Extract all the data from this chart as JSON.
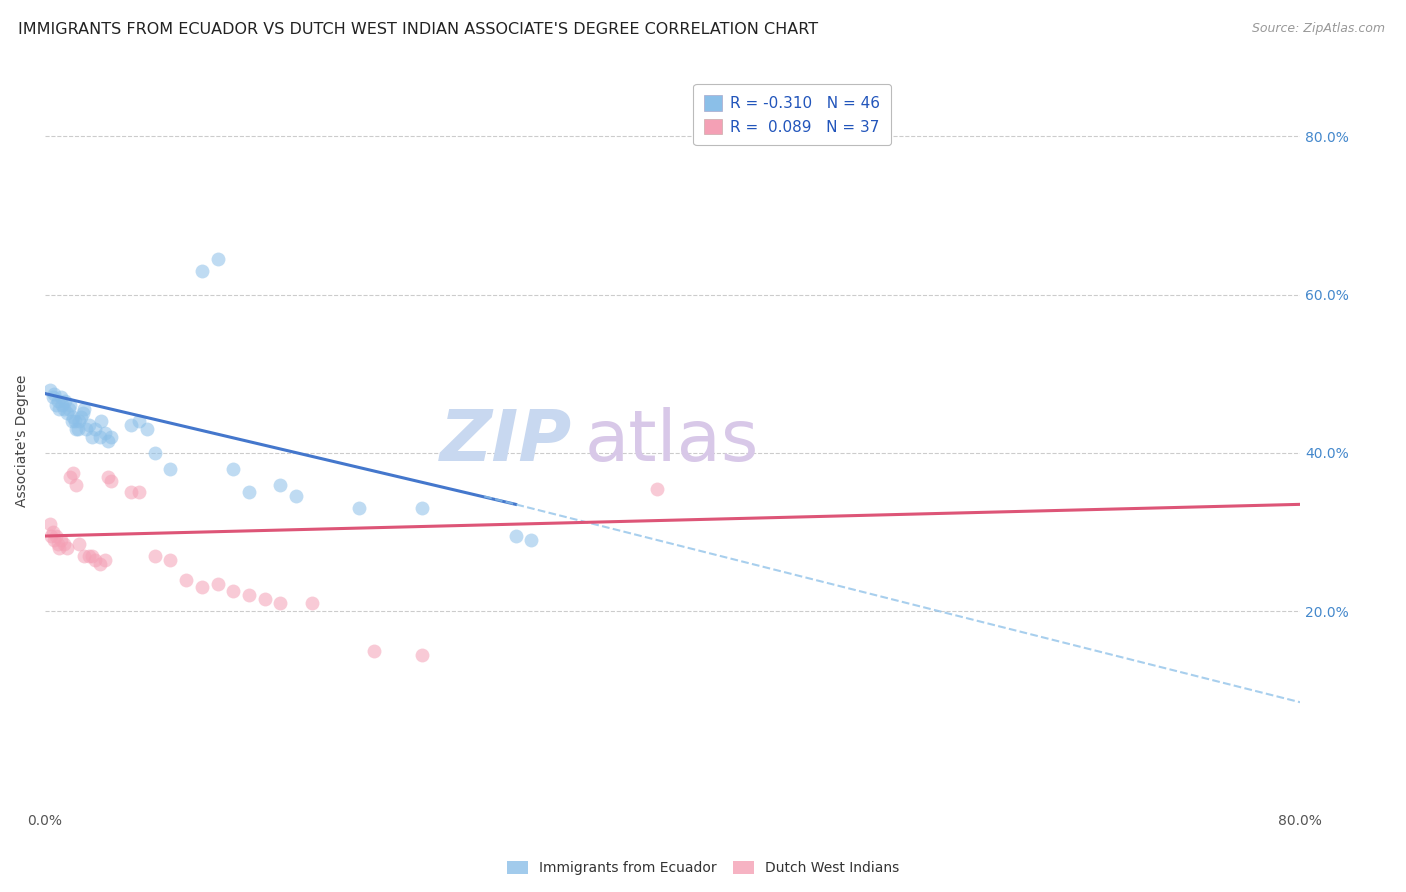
{
  "title": "IMMIGRANTS FROM ECUADOR VS DUTCH WEST INDIAN ASSOCIATE'S DEGREE CORRELATION CHART",
  "source": "Source: ZipAtlas.com",
  "ylabel": "Associate's Degree",
  "right_yticks": [
    "80.0%",
    "60.0%",
    "40.0%",
    "20.0%"
  ],
  "right_ytick_vals": [
    0.8,
    0.6,
    0.4,
    0.2
  ],
  "xlim": [
    0.0,
    0.8
  ],
  "ylim": [
    -0.05,
    0.88
  ],
  "legend_labels": [
    "R = -0.310   N = 46",
    "R =  0.089   N = 37"
  ],
  "blue_scatter": [
    [
      0.003,
      0.48
    ],
    [
      0.005,
      0.47
    ],
    [
      0.006,
      0.475
    ],
    [
      0.007,
      0.46
    ],
    [
      0.008,
      0.465
    ],
    [
      0.009,
      0.455
    ],
    [
      0.01,
      0.47
    ],
    [
      0.011,
      0.46
    ],
    [
      0.012,
      0.455
    ],
    [
      0.013,
      0.465
    ],
    [
      0.014,
      0.45
    ],
    [
      0.015,
      0.455
    ],
    [
      0.016,
      0.46
    ],
    [
      0.017,
      0.44
    ],
    [
      0.018,
      0.445
    ],
    [
      0.019,
      0.44
    ],
    [
      0.02,
      0.43
    ],
    [
      0.021,
      0.43
    ],
    [
      0.022,
      0.44
    ],
    [
      0.023,
      0.445
    ],
    [
      0.024,
      0.45
    ],
    [
      0.025,
      0.455
    ],
    [
      0.026,
      0.43
    ],
    [
      0.028,
      0.435
    ],
    [
      0.03,
      0.42
    ],
    [
      0.032,
      0.43
    ],
    [
      0.035,
      0.42
    ],
    [
      0.036,
      0.44
    ],
    [
      0.038,
      0.425
    ],
    [
      0.04,
      0.415
    ],
    [
      0.042,
      0.42
    ],
    [
      0.055,
      0.435
    ],
    [
      0.06,
      0.44
    ],
    [
      0.065,
      0.43
    ],
    [
      0.07,
      0.4
    ],
    [
      0.08,
      0.38
    ],
    [
      0.1,
      0.63
    ],
    [
      0.11,
      0.645
    ],
    [
      0.12,
      0.38
    ],
    [
      0.13,
      0.35
    ],
    [
      0.15,
      0.36
    ],
    [
      0.16,
      0.345
    ],
    [
      0.2,
      0.33
    ],
    [
      0.24,
      0.33
    ],
    [
      0.3,
      0.295
    ],
    [
      0.31,
      0.29
    ]
  ],
  "pink_scatter": [
    [
      0.003,
      0.31
    ],
    [
      0.004,
      0.295
    ],
    [
      0.005,
      0.3
    ],
    [
      0.006,
      0.29
    ],
    [
      0.007,
      0.295
    ],
    [
      0.008,
      0.285
    ],
    [
      0.009,
      0.28
    ],
    [
      0.01,
      0.29
    ],
    [
      0.012,
      0.285
    ],
    [
      0.014,
      0.28
    ],
    [
      0.016,
      0.37
    ],
    [
      0.018,
      0.375
    ],
    [
      0.02,
      0.36
    ],
    [
      0.022,
      0.285
    ],
    [
      0.025,
      0.27
    ],
    [
      0.028,
      0.27
    ],
    [
      0.03,
      0.27
    ],
    [
      0.032,
      0.265
    ],
    [
      0.035,
      0.26
    ],
    [
      0.038,
      0.265
    ],
    [
      0.04,
      0.37
    ],
    [
      0.042,
      0.365
    ],
    [
      0.055,
      0.35
    ],
    [
      0.06,
      0.35
    ],
    [
      0.07,
      0.27
    ],
    [
      0.08,
      0.265
    ],
    [
      0.09,
      0.24
    ],
    [
      0.1,
      0.23
    ],
    [
      0.11,
      0.235
    ],
    [
      0.12,
      0.225
    ],
    [
      0.13,
      0.22
    ],
    [
      0.14,
      0.215
    ],
    [
      0.15,
      0.21
    ],
    [
      0.17,
      0.21
    ],
    [
      0.21,
      0.15
    ],
    [
      0.24,
      0.145
    ],
    [
      0.39,
      0.355
    ]
  ],
  "blue_solid_line": [
    [
      0.0,
      0.475
    ],
    [
      0.3,
      0.335
    ]
  ],
  "blue_dashed_line": [
    [
      0.28,
      0.345
    ],
    [
      0.8,
      0.085
    ]
  ],
  "pink_line": [
    [
      0.0,
      0.295
    ],
    [
      0.8,
      0.335
    ]
  ],
  "watermark_zip": "ZIP",
  "watermark_atlas": "atlas",
  "scatter_size": 100,
  "scatter_alpha": 0.55,
  "blue_color": "#8bbfe8",
  "pink_color": "#f4a0b5",
  "blue_line_color": "#4477cc",
  "pink_line_color": "#dd5577",
  "grid_color": "#cccccc",
  "title_fontsize": 11.5,
  "axis_label_fontsize": 10,
  "tick_fontsize": 10,
  "watermark_fontsize_zip": 52,
  "watermark_fontsize_atlas": 52,
  "watermark_color_zip": "#c8d8f0",
  "watermark_color_atlas": "#d8c8e8",
  "source_fontsize": 9
}
